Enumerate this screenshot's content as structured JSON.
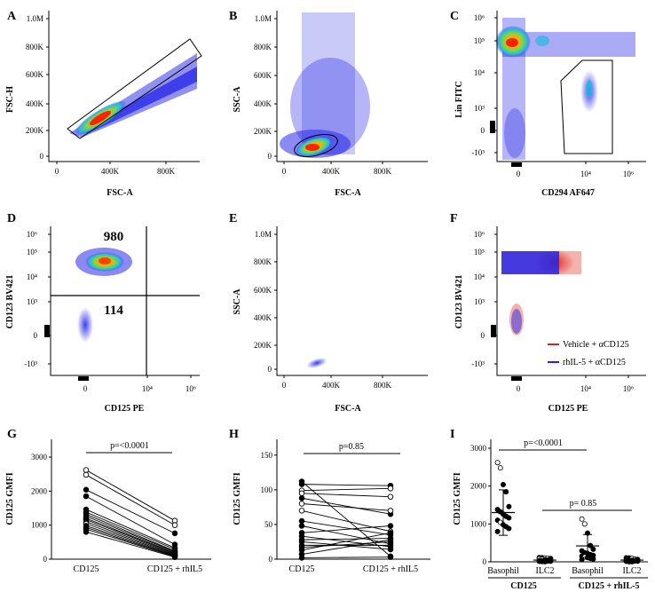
{
  "figure": {
    "panels": {
      "A": {
        "letter": "A",
        "xlabel": "FSC-A",
        "ylabel": "FSC-H",
        "xticks": [
          "0",
          "400K",
          "800K"
        ],
        "yticks": [
          "0",
          "200K",
          "400K",
          "600K",
          "800K",
          "1.0M"
        ]
      },
      "B": {
        "letter": "B",
        "xlabel": "FSC-A",
        "ylabel": "SSC-A",
        "xticks": [
          "0",
          "400K",
          "800K"
        ],
        "yticks": [
          "0",
          "200K",
          "400K",
          "600K",
          "800K",
          "1.0M"
        ]
      },
      "C": {
        "letter": "C",
        "xlabel": "CD294 AF647",
        "ylabel": "Lin FITC",
        "xticks": [
          "0",
          "10⁴",
          "10⁶"
        ],
        "yticks": [
          "-10³",
          "0",
          "10³",
          "10⁴",
          "10⁵",
          "10⁶"
        ]
      },
      "D": {
        "letter": "D",
        "xlabel": "CD125 PE",
        "ylabel": "CD123 BV421",
        "xticks": [
          "0",
          "10⁴",
          "10⁶"
        ],
        "yticks": [
          "-10³",
          "0",
          "10³",
          "10⁴",
          "10⁵",
          "10⁶"
        ],
        "quadrant_counts": [
          "980",
          "114"
        ]
      },
      "E": {
        "letter": "E",
        "xlabel": "FSC-A",
        "ylabel": "SSC-A",
        "xticks": [
          "0",
          "400K",
          "800K"
        ],
        "yticks": [
          "0",
          "200K",
          "400K",
          "600K",
          "800K",
          "1.0M"
        ]
      },
      "F": {
        "letter": "F",
        "xlabel": "CD125 PE",
        "ylabel": "CD123 BV421",
        "xticks": [
          "0",
          "10⁴",
          "10⁶"
        ],
        "yticks": [
          "-10³",
          "0",
          "10³",
          "10⁴",
          "10⁵",
          "10⁶"
        ],
        "legend": [
          {
            "label": "Vehicle + αCD125",
            "color": "#e0211b"
          },
          {
            "label": "rhIL-5 + αCD125",
            "color": "#2424e6"
          }
        ]
      }
    }
  },
  "chart_data": [
    {
      "panel": "G",
      "type": "line",
      "title": "",
      "ylabel": "CD125 GMFI",
      "xlabel": "",
      "categories": [
        "CD125",
        "CD125 + rhIL5"
      ],
      "ylim": [
        0,
        3000
      ],
      "yticks": [
        "0",
        "1000",
        "2000",
        "3000"
      ],
      "pvalue": "p=<0.0001",
      "pairs": [
        [
          2620,
          1130
        ],
        [
          2480,
          1000
        ],
        [
          2040,
          760
        ],
        [
          1850,
          430
        ],
        [
          1460,
          330
        ],
        [
          1380,
          290
        ],
        [
          1320,
          240
        ],
        [
          1260,
          220
        ],
        [
          1200,
          190
        ],
        [
          1160,
          170
        ],
        [
          1100,
          150
        ],
        [
          1040,
          130
        ],
        [
          980,
          110
        ],
        [
          930,
          90
        ],
        [
          880,
          75
        ],
        [
          800,
          60
        ]
      ],
      "hollow": [
        0,
        1,
        11
      ]
    },
    {
      "panel": "H",
      "type": "line",
      "title": "",
      "ylabel": "CD125 GMFI",
      "xlabel": "",
      "categories": [
        "CD125",
        "CD125 + rhIL5"
      ],
      "ylim": [
        0,
        160
      ],
      "yticks": [
        "0",
        "50",
        "100",
        "150"
      ],
      "pvalue": "p=0.85",
      "pairs": [
        [
          112,
          4
        ],
        [
          108,
          106
        ],
        [
          99,
          102
        ],
        [
          95,
          90
        ],
        [
          88,
          65
        ],
        [
          80,
          70
        ],
        [
          70,
          40
        ],
        [
          55,
          35
        ],
        [
          48,
          22
        ],
        [
          38,
          48
        ],
        [
          33,
          18
        ],
        [
          28,
          30
        ],
        [
          25,
          14
        ],
        [
          20,
          20
        ],
        [
          17,
          25
        ],
        [
          13,
          38
        ],
        [
          7,
          28
        ],
        [
          2,
          3
        ]
      ],
      "hollow": [
        2,
        3,
        5,
        6
      ]
    },
    {
      "panel": "I",
      "type": "scatter",
      "title": "",
      "ylabel": "CD125 GMFI",
      "xlabel": "",
      "ylim": [
        0,
        3000
      ],
      "yticks": [
        "0",
        "1000",
        "2000",
        "3000"
      ],
      "categories": [
        "Basophil",
        "ILC2",
        "Basophil",
        "ILC2"
      ],
      "groups": [
        "CD125",
        "CD125 + rhIL-5"
      ],
      "comparisons": [
        {
          "text": "p=<0.0001"
        },
        {
          "text": "p= 0.85"
        }
      ],
      "series": [
        {
          "name": "CD125 Basophil",
          "mean": 1300,
          "sd": 600,
          "values": [
            2620,
            2480,
            2040,
            1850,
            1460,
            1380,
            1320,
            1260,
            1200,
            1160,
            1100,
            1040,
            980,
            930,
            880,
            800
          ],
          "hollow": [
            0,
            1,
            11
          ]
        },
        {
          "name": "CD125 ILC2",
          "mean": 45,
          "sd": 30,
          "values": [
            112,
            108,
            99,
            95,
            88,
            80,
            70,
            55,
            48,
            38,
            33,
            28,
            25,
            20,
            17,
            13,
            7,
            2
          ],
          "hollow": [
            2,
            3,
            5,
            6
          ]
        },
        {
          "name": "CD125 + rhIL-5 Basophil",
          "mean": 420,
          "sd": 300,
          "values": [
            1130,
            1000,
            760,
            430,
            330,
            290,
            240,
            220,
            190,
            170,
            150,
            130,
            110,
            90,
            75,
            60
          ],
          "hollow": [
            0,
            1,
            11
          ]
        },
        {
          "name": "CD125 + rhIL-5 ILC2",
          "mean": 45,
          "sd": 30,
          "values": [
            106,
            102,
            90,
            70,
            65,
            48,
            40,
            38,
            35,
            30,
            28,
            25,
            22,
            20,
            18,
            14,
            4,
            3
          ],
          "hollow": [
            2,
            3,
            5,
            6
          ]
        }
      ]
    }
  ]
}
